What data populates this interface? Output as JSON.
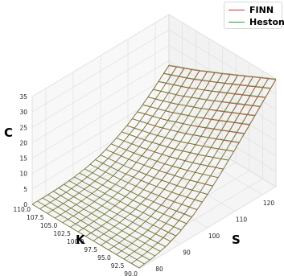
{
  "chart_data": {
    "type": "surface",
    "title": "",
    "xlabel": "S",
    "ylabel": "K",
    "zlabel": "C",
    "xlim": [
      75,
      125
    ],
    "ylim": [
      90,
      110
    ],
    "zlim": [
      0,
      35
    ],
    "x_ticks": [
      "80",
      "90",
      "100",
      "110",
      "120"
    ],
    "y_ticks": [
      "90.0",
      "92.5",
      "95.0",
      "97.5",
      "100.0",
      "102.5",
      "105.0",
      "107.5",
      "110.0"
    ],
    "z_ticks": [
      "0",
      "5",
      "10",
      "15",
      "20",
      "25",
      "30",
      "35"
    ],
    "S": [
      75,
      80,
      85,
      90,
      95,
      100,
      105,
      110,
      115,
      120,
      125
    ],
    "K": [
      90,
      95,
      100,
      105,
      110
    ],
    "series": [
      {
        "name": "FINN",
        "color": "#d62728",
        "C_by_K": [
          [
            0.3,
            0.9,
            2.1,
            4.1,
            7.0,
            10.8,
            15.2,
            20.0,
            24.8,
            29.8,
            34.8
          ],
          [
            0.15,
            0.5,
            1.3,
            2.8,
            5.0,
            8.0,
            11.8,
            16.2,
            20.8,
            25.6,
            30.5
          ],
          [
            0.07,
            0.3,
            0.8,
            1.8,
            3.4,
            5.8,
            8.9,
            12.6,
            16.9,
            21.5,
            26.2
          ],
          [
            0.03,
            0.15,
            0.45,
            1.1,
            2.2,
            4.0,
            6.6,
            9.7,
            13.4,
            17.6,
            22.1
          ],
          [
            0.02,
            0.08,
            0.25,
            0.65,
            1.4,
            2.7,
            4.7,
            7.3,
            10.5,
            14.3,
            18.4
          ]
        ]
      },
      {
        "name": "Heston",
        "color": "#2ca02c",
        "C_by_K": [
          [
            0.3,
            0.9,
            2.2,
            4.2,
            7.1,
            10.9,
            15.3,
            20.1,
            25.0,
            30.0,
            35.0
          ],
          [
            0.15,
            0.5,
            1.35,
            2.85,
            5.1,
            8.1,
            11.9,
            16.3,
            21.0,
            25.8,
            30.7
          ],
          [
            0.07,
            0.3,
            0.82,
            1.85,
            3.45,
            5.9,
            9.0,
            12.7,
            17.0,
            21.6,
            26.4
          ],
          [
            0.03,
            0.15,
            0.46,
            1.12,
            2.25,
            4.05,
            6.7,
            9.8,
            13.5,
            17.7,
            22.3
          ],
          [
            0.02,
            0.08,
            0.26,
            0.67,
            1.42,
            2.75,
            4.75,
            7.4,
            10.6,
            14.4,
            18.6
          ]
        ]
      }
    ],
    "grid": true,
    "legend_position": "top-right"
  }
}
